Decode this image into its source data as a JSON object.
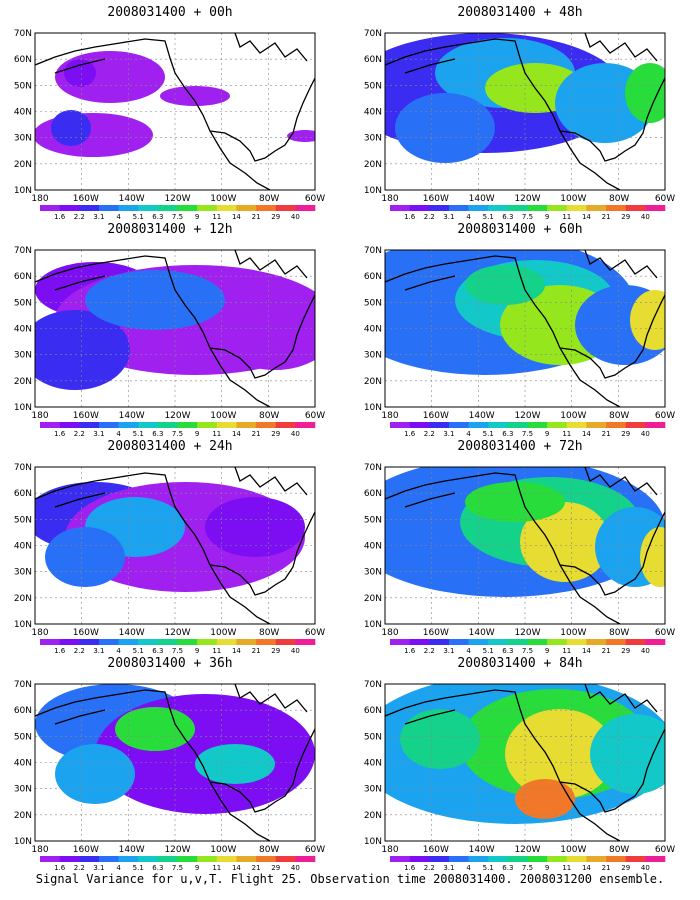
{
  "panels": [
    {
      "title": "2008031400 + 00h",
      "stage": 0
    },
    {
      "title": "2008031400 + 48h",
      "stage": 4
    },
    {
      "title": "2008031400 + 12h",
      "stage": 1
    },
    {
      "title": "2008031400 + 60h",
      "stage": 5
    },
    {
      "title": "2008031400 + 24h",
      "stage": 2
    },
    {
      "title": "2008031400 + 72h",
      "stage": 6
    },
    {
      "title": "2008031400 + 36h",
      "stage": 3
    },
    {
      "title": "2008031400 + 84h",
      "stage": 7
    }
  ],
  "lat_labels": [
    "70N",
    "60N",
    "50N",
    "40N",
    "30N",
    "20N",
    "10N"
  ],
  "lon_labels": [
    "180",
    "160W",
    "140W",
    "120W",
    "100W",
    "80W",
    "60W"
  ],
  "colorbar": {
    "labels": [
      "1.6",
      "2.2",
      "3.1",
      "4",
      "5.1",
      "6.3",
      "7.5",
      "9",
      "11",
      "14",
      "21",
      "29",
      "40"
    ],
    "colors": [
      "#a020f0",
      "#7d0ef3",
      "#3a2cf0",
      "#2870f5",
      "#1ba3f0",
      "#12c8c8",
      "#14d28a",
      "#28dc3c",
      "#96e61e",
      "#e6dc32",
      "#e6aa28",
      "#f07828",
      "#f03c3c",
      "#f01e96"
    ]
  },
  "footer": "Signal Variance for u,v,T. Flight 25. Observation time 2008031400. 2008031200 ensemble."
}
